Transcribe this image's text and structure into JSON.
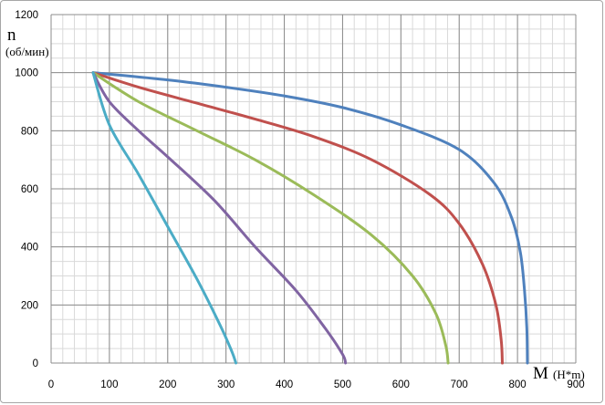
{
  "chart_data": {
    "type": "line",
    "title": "",
    "xlabel": "M",
    "xlabel_unit": "(H*m)",
    "ylabel": "n",
    "ylabel_unit": "(об/мин)",
    "xlim": [
      0,
      900
    ],
    "ylim": [
      0,
      1200
    ],
    "x_ticks": [
      0,
      100,
      200,
      300,
      400,
      500,
      600,
      700,
      800,
      900
    ],
    "y_ticks": [
      0,
      200,
      400,
      600,
      800,
      1000,
      1200
    ],
    "x_tick_labels": [
      "0",
      "100",
      "200",
      "300",
      "400",
      "500",
      "600",
      "700",
      "800",
      "900"
    ],
    "y_tick_labels": [
      "0",
      "200",
      "400",
      "600",
      "800",
      "1000",
      "1200"
    ],
    "grid": true,
    "minor_grid_step_x": 20,
    "minor_grid_step_y": 50,
    "legend": "none",
    "series": [
      {
        "color": "#4f81bd",
        "points": [
          [
            72,
            1000
          ],
          [
            200,
            975
          ],
          [
            300,
            950
          ],
          [
            400,
            920
          ],
          [
            500,
            880
          ],
          [
            600,
            820
          ],
          [
            700,
            735
          ],
          [
            760,
            620
          ],
          [
            790,
            500
          ],
          [
            805,
            380
          ],
          [
            812,
            250
          ],
          [
            816,
            120
          ],
          [
            817,
            0
          ]
        ]
      },
      {
        "color": "#c0504d",
        "points": [
          [
            72,
            1000
          ],
          [
            150,
            950
          ],
          [
            250,
            895
          ],
          [
            350,
            840
          ],
          [
            450,
            780
          ],
          [
            550,
            700
          ],
          [
            650,
            580
          ],
          [
            700,
            480
          ],
          [
            740,
            340
          ],
          [
            763,
            200
          ],
          [
            772,
            80
          ],
          [
            774,
            0
          ]
        ]
      },
      {
        "color": "#9bbb59",
        "points": [
          [
            72,
            1000
          ],
          [
            150,
            900
          ],
          [
            250,
            800
          ],
          [
            350,
            700
          ],
          [
            450,
            580
          ],
          [
            550,
            440
          ],
          [
            620,
            300
          ],
          [
            660,
            170
          ],
          [
            677,
            60
          ],
          [
            681,
            0
          ]
        ]
      },
      {
        "color": "#8064a2",
        "points": [
          [
            72,
            1000
          ],
          [
            100,
            900
          ],
          [
            150,
            800
          ],
          [
            200,
            710
          ],
          [
            280,
            560
          ],
          [
            350,
            400
          ],
          [
            420,
            250
          ],
          [
            470,
            120
          ],
          [
            500,
            30
          ],
          [
            505,
            0
          ]
        ]
      },
      {
        "color": "#4bacc6",
        "points": [
          [
            72,
            1000
          ],
          [
            100,
            820
          ],
          [
            150,
            650
          ],
          [
            200,
            470
          ],
          [
            250,
            290
          ],
          [
            290,
            130
          ],
          [
            310,
            40
          ],
          [
            317,
            0
          ]
        ]
      }
    ]
  }
}
